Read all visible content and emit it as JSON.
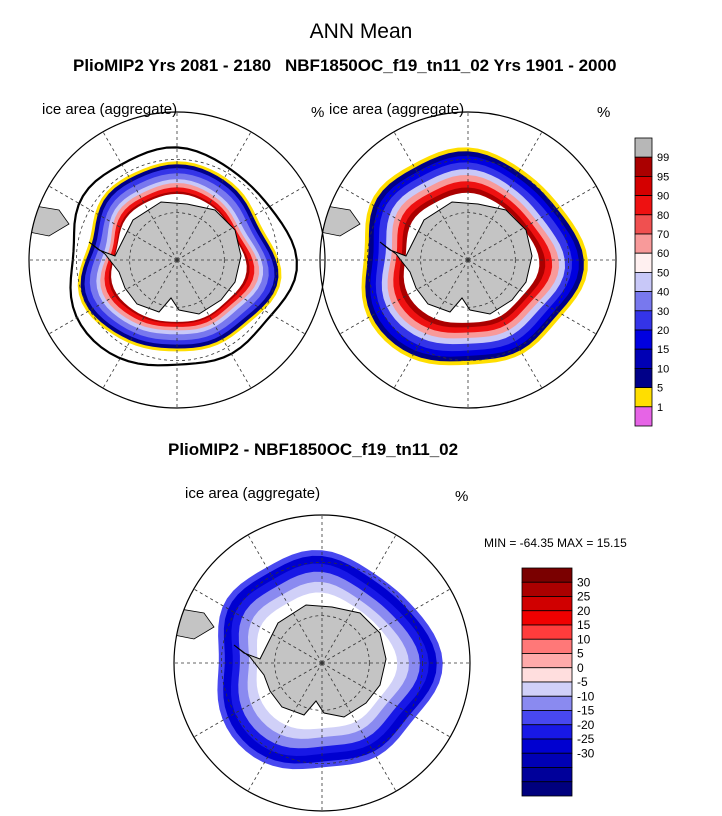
{
  "page": {
    "main_title": "ANN Mean",
    "panel_left_title": "PlioMIP2  Yrs 2081 - 2180",
    "panel_right_title": "NBF1850OC_f19_tn11_02  Yrs 1901 - 2000",
    "panel_diff_title": "PlioMIP2 - NBF1850OC_f19_tn11_02",
    "variable_label": "ice area  (aggregate)",
    "unit_label": "%",
    "minmax_text": "MIN = -64.35 MAX =  15.15"
  },
  "chart_data": [
    {
      "type": "heatmap",
      "subtype": "polar-stereographic-map",
      "title": "PlioMIP2  Yrs 2081 - 2180",
      "variable": "ice area  (aggregate)",
      "unit": "%",
      "colorbar": {
        "tick_labels": [
          "99",
          "95",
          "90",
          "80",
          "70",
          "60",
          "50",
          "40",
          "30",
          "20",
          "15",
          "10",
          "5",
          "1"
        ],
        "colors": [
          "#b7b7b7",
          "#aa0000",
          "#d40000",
          "#ee1111",
          "#f05050",
          "#f89a9a",
          "#fff0f0",
          "#c8c8f8",
          "#7878ee",
          "#3434e8",
          "#0000e0",
          "#0000b4",
          "#000088",
          "#ffde00",
          "#e664e6"
        ]
      }
    },
    {
      "type": "heatmap",
      "subtype": "polar-stereographic-map",
      "title": "NBF1850OC_f19_tn11_02  Yrs 1901 - 2000",
      "variable": "ice area  (aggregate)",
      "unit": "%"
    },
    {
      "type": "heatmap",
      "subtype": "polar-stereographic-map",
      "title": "PlioMIP2 - NBF1850OC_f19_tn11_02",
      "variable": "ice area  (aggregate)",
      "unit": "%",
      "min": -64.35,
      "max": 15.15,
      "colorbar": {
        "tick_labels": [
          "30",
          "25",
          "20",
          "15",
          "10",
          "5",
          "0",
          "-5",
          "-10",
          "-15",
          "-20",
          "-25",
          "-30"
        ],
        "colors": [
          "#7a0000",
          "#aa0000",
          "#d00000",
          "#f00000",
          "#ff3c3c",
          "#ff7878",
          "#ffaaaa",
          "#ffdede",
          "#d0d0f8",
          "#8a8af0",
          "#4848f0",
          "#1818e6",
          "#0000d0",
          "#0000b4",
          "#00009a",
          "#00007e"
        ]
      }
    }
  ]
}
